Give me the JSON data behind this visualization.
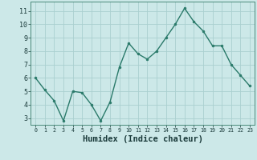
{
  "x": [
    0,
    1,
    2,
    3,
    4,
    5,
    6,
    7,
    8,
    9,
    10,
    11,
    12,
    13,
    14,
    15,
    16,
    17,
    18,
    19,
    20,
    21,
    22,
    23
  ],
  "y": [
    6.0,
    5.1,
    4.3,
    2.8,
    5.0,
    4.9,
    4.0,
    2.8,
    4.2,
    6.8,
    8.6,
    7.8,
    7.4,
    8.0,
    9.0,
    10.0,
    11.2,
    10.2,
    9.5,
    8.4,
    8.4,
    7.0,
    6.2,
    5.4
  ],
  "line_color": "#2a7a6a",
  "marker_color": "#2a7a6a",
  "bg_color": "#cce8e8",
  "grid_color": "#aacfcf",
  "xlabel": "Humidex (Indice chaleur)",
  "xlabel_fontsize": 7.5,
  "ytick_labels": [
    "3",
    "4",
    "5",
    "6",
    "7",
    "8",
    "9",
    "10",
    "11"
  ],
  "ylabel_ticks": [
    3,
    4,
    5,
    6,
    7,
    8,
    9,
    10,
    11
  ],
  "xlim": [
    -0.5,
    23.5
  ],
  "ylim": [
    2.5,
    11.7
  ],
  "xtick_labels": [
    "0",
    "1",
    "2",
    "3",
    "4",
    "5",
    "6",
    "7",
    "8",
    "9",
    "10",
    "11",
    "12",
    "13",
    "14",
    "15",
    "16",
    "17",
    "18",
    "19",
    "20",
    "21",
    "22",
    "23"
  ]
}
